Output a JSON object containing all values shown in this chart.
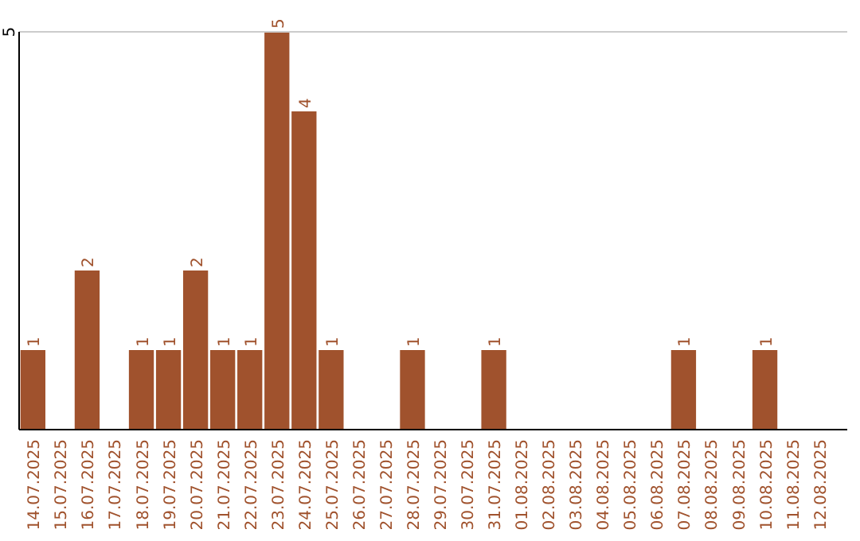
{
  "chart_data": {
    "type": "bar",
    "categories": [
      "14.07.2025",
      "15.07.2025",
      "16.07.2025",
      "17.07.2025",
      "18.07.2025",
      "19.07.2025",
      "20.07.2025",
      "21.07.2025",
      "22.07.2025",
      "23.07.2025",
      "24.07.2025",
      "25.07.2025",
      "26.07.2025",
      "27.07.2025",
      "28.07.2025",
      "29.07.2025",
      "30.07.2025",
      "31.07.2025",
      "01.08.2025",
      "02.08.2025",
      "03.08.2025",
      "04.08.2025",
      "05.08.2025",
      "06.08.2025",
      "07.08.2025",
      "08.08.2025",
      "09.08.2025",
      "10.08.2025",
      "11.08.2025",
      "12.08.2025"
    ],
    "values": [
      1,
      0,
      2,
      0,
      1,
      1,
      2,
      1,
      1,
      5,
      4,
      1,
      0,
      0,
      1,
      0,
      0,
      1,
      0,
      0,
      0,
      0,
      0,
      0,
      1,
      0,
      0,
      1,
      0,
      0
    ],
    "value_labels": [
      "1",
      null,
      "2",
      null,
      "1",
      "1",
      "2",
      "1",
      "1",
      "5",
      "4",
      "1",
      null,
      null,
      "1",
      null,
      null,
      "1",
      null,
      null,
      null,
      null,
      null,
      null,
      "1",
      null,
      null,
      "1",
      null,
      null
    ],
    "color": "#a0522d",
    "ylim": [
      0,
      5
    ],
    "yticks": [
      5
    ],
    "ref_lines": [
      {
        "axis": "y",
        "value": 5,
        "color": "#cccccc"
      }
    ]
  }
}
